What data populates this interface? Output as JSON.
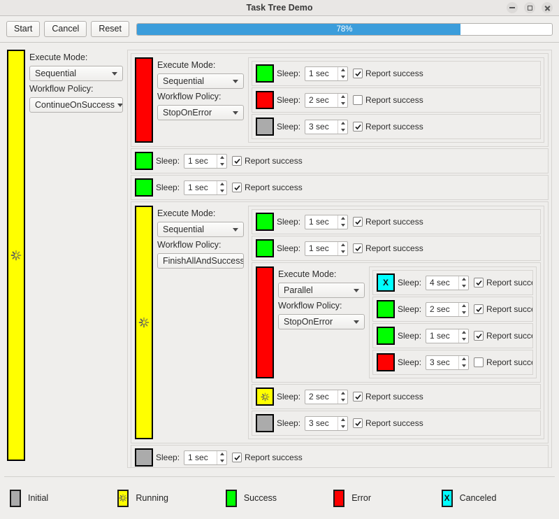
{
  "window": {
    "title": "Task Tree Demo"
  },
  "toolbar": {
    "start": "Start",
    "cancel": "Cancel",
    "reset": "Reset",
    "progress_percent": 78,
    "progress_label": "78%"
  },
  "labels": {
    "execute_mode": "Execute Mode:",
    "workflow_policy": "Workflow Policy:",
    "sleep": "Sleep:",
    "report_success": "Report success"
  },
  "icons": {
    "canceled_glyph": "X"
  },
  "colors": {
    "initial": "#ababab",
    "running": "#ffff00",
    "success": "#00ff00",
    "error": "#ff0000",
    "canceled": "#00ffff",
    "progress_fill": "#3b9ddb"
  },
  "tree": {
    "type": "group",
    "status": "running",
    "execute_mode": "Sequential",
    "workflow_policy": "ContinueOnSuccess",
    "children": [
      {
        "type": "group",
        "status": "error",
        "execute_mode": "Sequential",
        "workflow_policy": "StopOnError",
        "children": [
          {
            "type": "sleep",
            "status": "success",
            "duration": "1 sec",
            "report_success": true
          },
          {
            "type": "sleep",
            "status": "error",
            "duration": "2 sec",
            "report_success": false
          },
          {
            "type": "sleep",
            "status": "initial",
            "duration": "3 sec",
            "report_success": true
          }
        ]
      },
      {
        "type": "sleep",
        "status": "success",
        "duration": "1 sec",
        "report_success": true
      },
      {
        "type": "sleep",
        "status": "success",
        "duration": "1 sec",
        "report_success": true
      },
      {
        "type": "group",
        "status": "running",
        "execute_mode": "Sequential",
        "workflow_policy": "FinishAllAndSuccess",
        "children": [
          {
            "type": "sleep",
            "status": "success",
            "duration": "1 sec",
            "report_success": true
          },
          {
            "type": "sleep",
            "status": "success",
            "duration": "1 sec",
            "report_success": true
          },
          {
            "type": "group",
            "status": "error",
            "execute_mode": "Parallel",
            "workflow_policy": "StopOnError",
            "children": [
              {
                "type": "sleep",
                "status": "canceled",
                "duration": "4 sec",
                "report_success": true
              },
              {
                "type": "sleep",
                "status": "success",
                "duration": "2 sec",
                "report_success": true
              },
              {
                "type": "sleep",
                "status": "success",
                "duration": "1 sec",
                "report_success": true
              },
              {
                "type": "sleep",
                "status": "error",
                "duration": "3 sec",
                "report_success": false
              }
            ]
          },
          {
            "type": "sleep",
            "status": "running",
            "duration": "2 sec",
            "report_success": true
          },
          {
            "type": "sleep",
            "status": "initial",
            "duration": "3 sec",
            "report_success": true
          }
        ]
      },
      {
        "type": "sleep",
        "status": "initial",
        "duration": "1 sec",
        "report_success": true
      }
    ]
  },
  "legend": [
    {
      "status": "initial",
      "label": "Initial"
    },
    {
      "status": "running",
      "label": "Running"
    },
    {
      "status": "success",
      "label": "Success"
    },
    {
      "status": "error",
      "label": "Error"
    },
    {
      "status": "canceled",
      "label": "Canceled"
    }
  ]
}
